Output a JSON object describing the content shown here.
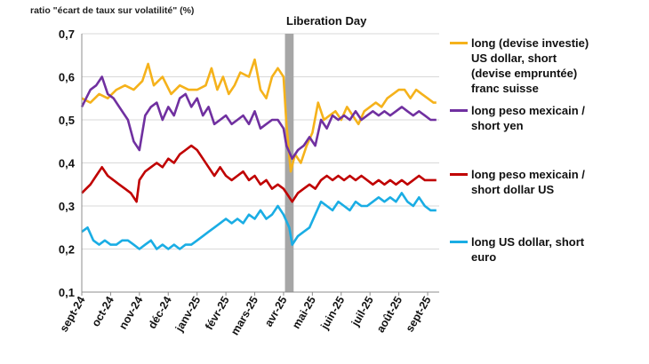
{
  "chart_data": {
    "type": "line",
    "title": "",
    "ylabel": "ratio \"écart de taux sur volatilité\" (%)",
    "xlabel": "",
    "ylim": [
      0.1,
      0.7
    ],
    "yticks": [
      "0,1",
      "0,2",
      "0,3",
      "0,4",
      "0,5",
      "0,6",
      "0,7"
    ],
    "ytick_values": [
      0.1,
      0.2,
      0.3,
      0.4,
      0.5,
      0.6,
      0.7
    ],
    "xticks": [
      "sept-24",
      "oct-24",
      "nov-24",
      "déc-24",
      "janv-25",
      "févr-25",
      "mars-25",
      "avr-25",
      "mai-25",
      "juin-25",
      "juil-25",
      "août-25",
      "sept-25"
    ],
    "x_range_months": [
      0,
      12.4
    ],
    "annotation": {
      "label": "Liberation Day",
      "x_start": 7.05,
      "x_end": 7.35
    },
    "series": [
      {
        "name": "long (devise investie) US dollar, short (devise empruntée) franc suisse",
        "legend_label": "long (devise investie)\nUS dollar, short\n(devise empruntée)\nfranc suisse",
        "color": "#F5B21B",
        "points": [
          [
            0,
            0.55
          ],
          [
            0.3,
            0.54
          ],
          [
            0.6,
            0.56
          ],
          [
            0.9,
            0.55
          ],
          [
            1.2,
            0.57
          ],
          [
            1.5,
            0.58
          ],
          [
            1.8,
            0.57
          ],
          [
            2.1,
            0.59
          ],
          [
            2.3,
            0.63
          ],
          [
            2.5,
            0.58
          ],
          [
            2.8,
            0.6
          ],
          [
            3.1,
            0.56
          ],
          [
            3.4,
            0.58
          ],
          [
            3.7,
            0.57
          ],
          [
            4.0,
            0.57
          ],
          [
            4.3,
            0.58
          ],
          [
            4.5,
            0.62
          ],
          [
            4.7,
            0.57
          ],
          [
            4.9,
            0.6
          ],
          [
            5.1,
            0.56
          ],
          [
            5.3,
            0.58
          ],
          [
            5.5,
            0.61
          ],
          [
            5.8,
            0.6
          ],
          [
            6.0,
            0.64
          ],
          [
            6.2,
            0.57
          ],
          [
            6.4,
            0.55
          ],
          [
            6.6,
            0.6
          ],
          [
            6.8,
            0.62
          ],
          [
            7.0,
            0.6
          ],
          [
            7.1,
            0.49
          ],
          [
            7.25,
            0.38
          ],
          [
            7.4,
            0.42
          ],
          [
            7.6,
            0.4
          ],
          [
            7.8,
            0.44
          ],
          [
            8.0,
            0.47
          ],
          [
            8.2,
            0.54
          ],
          [
            8.4,
            0.5
          ],
          [
            8.6,
            0.51
          ],
          [
            8.8,
            0.52
          ],
          [
            9.0,
            0.5
          ],
          [
            9.2,
            0.53
          ],
          [
            9.4,
            0.51
          ],
          [
            9.6,
            0.49
          ],
          [
            9.8,
            0.52
          ],
          [
            10.0,
            0.53
          ],
          [
            10.2,
            0.54
          ],
          [
            10.4,
            0.53
          ],
          [
            10.6,
            0.55
          ],
          [
            10.8,
            0.56
          ],
          [
            11.0,
            0.57
          ],
          [
            11.2,
            0.57
          ],
          [
            11.4,
            0.55
          ],
          [
            11.6,
            0.57
          ],
          [
            11.8,
            0.56
          ],
          [
            12.0,
            0.55
          ],
          [
            12.2,
            0.54
          ],
          [
            12.3,
            0.54
          ]
        ]
      },
      {
        "name": "long peso mexicain / short yen",
        "legend_label": "long peso mexicain /\nshort yen",
        "color": "#7030A0",
        "points": [
          [
            0,
            0.53
          ],
          [
            0.3,
            0.57
          ],
          [
            0.5,
            0.58
          ],
          [
            0.7,
            0.6
          ],
          [
            0.9,
            0.56
          ],
          [
            1.1,
            0.55
          ],
          [
            1.3,
            0.53
          ],
          [
            1.6,
            0.5
          ],
          [
            1.8,
            0.45
          ],
          [
            2.0,
            0.43
          ],
          [
            2.2,
            0.51
          ],
          [
            2.4,
            0.53
          ],
          [
            2.6,
            0.54
          ],
          [
            2.8,
            0.5
          ],
          [
            3.0,
            0.53
          ],
          [
            3.2,
            0.51
          ],
          [
            3.4,
            0.55
          ],
          [
            3.6,
            0.56
          ],
          [
            3.8,
            0.53
          ],
          [
            4.0,
            0.55
          ],
          [
            4.2,
            0.51
          ],
          [
            4.4,
            0.53
          ],
          [
            4.6,
            0.49
          ],
          [
            4.8,
            0.5
          ],
          [
            5.0,
            0.51
          ],
          [
            5.2,
            0.49
          ],
          [
            5.4,
            0.5
          ],
          [
            5.6,
            0.51
          ],
          [
            5.8,
            0.49
          ],
          [
            6.0,
            0.52
          ],
          [
            6.2,
            0.48
          ],
          [
            6.4,
            0.49
          ],
          [
            6.6,
            0.5
          ],
          [
            6.8,
            0.5
          ],
          [
            7.0,
            0.48
          ],
          [
            7.1,
            0.44
          ],
          [
            7.3,
            0.41
          ],
          [
            7.5,
            0.43
          ],
          [
            7.7,
            0.44
          ],
          [
            7.9,
            0.46
          ],
          [
            8.1,
            0.44
          ],
          [
            8.3,
            0.5
          ],
          [
            8.5,
            0.48
          ],
          [
            8.7,
            0.51
          ],
          [
            8.9,
            0.5
          ],
          [
            9.1,
            0.51
          ],
          [
            9.3,
            0.5
          ],
          [
            9.5,
            0.52
          ],
          [
            9.7,
            0.5
          ],
          [
            9.9,
            0.51
          ],
          [
            10.1,
            0.52
          ],
          [
            10.3,
            0.51
          ],
          [
            10.5,
            0.52
          ],
          [
            10.7,
            0.51
          ],
          [
            10.9,
            0.52
          ],
          [
            11.1,
            0.53
          ],
          [
            11.3,
            0.52
          ],
          [
            11.5,
            0.51
          ],
          [
            11.7,
            0.52
          ],
          [
            11.9,
            0.51
          ],
          [
            12.1,
            0.5
          ],
          [
            12.3,
            0.5
          ]
        ]
      },
      {
        "name": "long peso mexicain / short dollar US",
        "legend_label": "long peso mexicain /\nshort dollar US",
        "color": "#C00000",
        "points": [
          [
            0,
            0.33
          ],
          [
            0.3,
            0.35
          ],
          [
            0.5,
            0.37
          ],
          [
            0.7,
            0.39
          ],
          [
            0.9,
            0.37
          ],
          [
            1.1,
            0.36
          ],
          [
            1.3,
            0.35
          ],
          [
            1.5,
            0.34
          ],
          [
            1.7,
            0.33
          ],
          [
            1.9,
            0.31
          ],
          [
            2.0,
            0.36
          ],
          [
            2.2,
            0.38
          ],
          [
            2.4,
            0.39
          ],
          [
            2.6,
            0.4
          ],
          [
            2.8,
            0.39
          ],
          [
            3.0,
            0.41
          ],
          [
            3.2,
            0.4
          ],
          [
            3.4,
            0.42
          ],
          [
            3.6,
            0.43
          ],
          [
            3.8,
            0.44
          ],
          [
            4.0,
            0.43
          ],
          [
            4.2,
            0.41
          ],
          [
            4.4,
            0.39
          ],
          [
            4.6,
            0.37
          ],
          [
            4.8,
            0.39
          ],
          [
            5.0,
            0.37
          ],
          [
            5.2,
            0.36
          ],
          [
            5.4,
            0.37
          ],
          [
            5.6,
            0.38
          ],
          [
            5.8,
            0.36
          ],
          [
            6.0,
            0.37
          ],
          [
            6.2,
            0.35
          ],
          [
            6.4,
            0.36
          ],
          [
            6.6,
            0.34
          ],
          [
            6.8,
            0.35
          ],
          [
            7.0,
            0.34
          ],
          [
            7.1,
            0.33
          ],
          [
            7.3,
            0.31
          ],
          [
            7.5,
            0.33
          ],
          [
            7.7,
            0.34
          ],
          [
            7.9,
            0.35
          ],
          [
            8.1,
            0.34
          ],
          [
            8.3,
            0.36
          ],
          [
            8.5,
            0.37
          ],
          [
            8.7,
            0.36
          ],
          [
            8.9,
            0.37
          ],
          [
            9.1,
            0.36
          ],
          [
            9.3,
            0.37
          ],
          [
            9.5,
            0.36
          ],
          [
            9.7,
            0.37
          ],
          [
            9.9,
            0.36
          ],
          [
            10.1,
            0.35
          ],
          [
            10.3,
            0.36
          ],
          [
            10.5,
            0.35
          ],
          [
            10.7,
            0.36
          ],
          [
            10.9,
            0.35
          ],
          [
            11.1,
            0.36
          ],
          [
            11.3,
            0.35
          ],
          [
            11.5,
            0.36
          ],
          [
            11.7,
            0.37
          ],
          [
            11.9,
            0.36
          ],
          [
            12.1,
            0.36
          ],
          [
            12.3,
            0.36
          ]
        ]
      },
      {
        "name": "long US dollar, short euro",
        "legend_label": "long US dollar, short\neuro",
        "color": "#1AADE4",
        "points": [
          [
            0,
            0.24
          ],
          [
            0.2,
            0.25
          ],
          [
            0.4,
            0.22
          ],
          [
            0.6,
            0.21
          ],
          [
            0.8,
            0.22
          ],
          [
            1.0,
            0.21
          ],
          [
            1.2,
            0.21
          ],
          [
            1.4,
            0.22
          ],
          [
            1.6,
            0.22
          ],
          [
            1.8,
            0.21
          ],
          [
            2.0,
            0.2
          ],
          [
            2.2,
            0.21
          ],
          [
            2.4,
            0.22
          ],
          [
            2.6,
            0.2
          ],
          [
            2.8,
            0.21
          ],
          [
            3.0,
            0.2
          ],
          [
            3.2,
            0.21
          ],
          [
            3.4,
            0.2
          ],
          [
            3.6,
            0.21
          ],
          [
            3.8,
            0.21
          ],
          [
            4.0,
            0.22
          ],
          [
            4.2,
            0.23
          ],
          [
            4.4,
            0.24
          ],
          [
            4.6,
            0.25
          ],
          [
            4.8,
            0.26
          ],
          [
            5.0,
            0.27
          ],
          [
            5.2,
            0.26
          ],
          [
            5.4,
            0.27
          ],
          [
            5.6,
            0.26
          ],
          [
            5.8,
            0.28
          ],
          [
            6.0,
            0.27
          ],
          [
            6.2,
            0.29
          ],
          [
            6.4,
            0.27
          ],
          [
            6.6,
            0.28
          ],
          [
            6.8,
            0.3
          ],
          [
            7.0,
            0.28
          ],
          [
            7.2,
            0.25
          ],
          [
            7.3,
            0.21
          ],
          [
            7.5,
            0.23
          ],
          [
            7.7,
            0.24
          ],
          [
            7.9,
            0.25
          ],
          [
            8.1,
            0.28
          ],
          [
            8.3,
            0.31
          ],
          [
            8.5,
            0.3
          ],
          [
            8.7,
            0.29
          ],
          [
            8.9,
            0.31
          ],
          [
            9.1,
            0.3
          ],
          [
            9.3,
            0.29
          ],
          [
            9.5,
            0.31
          ],
          [
            9.7,
            0.3
          ],
          [
            9.9,
            0.3
          ],
          [
            10.1,
            0.31
          ],
          [
            10.3,
            0.32
          ],
          [
            10.5,
            0.31
          ],
          [
            10.7,
            0.32
          ],
          [
            10.9,
            0.31
          ],
          [
            11.1,
            0.33
          ],
          [
            11.3,
            0.31
          ],
          [
            11.5,
            0.3
          ],
          [
            11.7,
            0.32
          ],
          [
            11.9,
            0.3
          ],
          [
            12.1,
            0.29
          ],
          [
            12.3,
            0.29
          ]
        ]
      }
    ]
  }
}
